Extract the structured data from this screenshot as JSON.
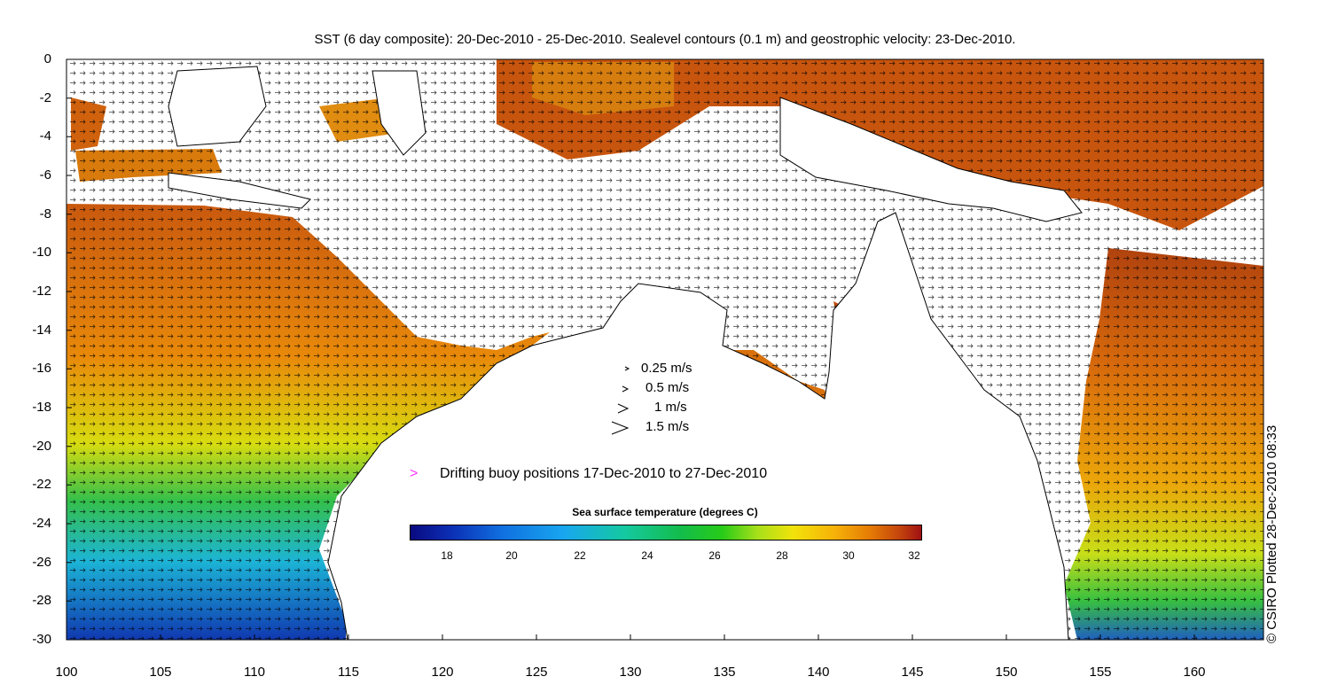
{
  "title": "SST (6 day composite): 20-Dec-2010 - 25-Dec-2010. Sealevel contours (0.1 m) and geostrophic velocity: 23-Dec-2010.",
  "credit": "© CSIRO Plotted 28-Dec-2010 08:33",
  "y_ticks": [
    "0",
    "-2",
    "-4",
    "-6",
    "-8",
    "-10",
    "-12",
    "-14",
    "-16",
    "-18",
    "-20",
    "-22",
    "-24",
    "-26",
    "-28",
    "-30"
  ],
  "x_ticks": [
    "100",
    "105",
    "110",
    "115",
    "120",
    "125",
    "130",
    "135",
    "140",
    "145",
    "150",
    "155",
    "160"
  ],
  "velocity_legend": [
    "0.25 m/s",
    "0.5 m/s",
    "1 m/s",
    "1.5 m/s"
  ],
  "buoy_label": "Drifting buoy positions 17-Dec-2010 to 27-Dec-2010",
  "buoy_marker": ">",
  "colorbar": {
    "title": "Sea surface temperature (degrees C)",
    "ticks": [
      "18",
      "20",
      "22",
      "24",
      "26",
      "28",
      "30",
      "32"
    ]
  },
  "map": {
    "lon_range": [
      100,
      164
    ],
    "lat_range": [
      -30,
      0
    ],
    "colors": {
      "warm": "#d2691e",
      "hot": "#b5400f",
      "orange": "#e88d0c",
      "yellow": "#e6e012",
      "green": "#2ec04a",
      "cyan": "#2cb6d8",
      "blue": "#1c4fc0",
      "land": "#ffffff"
    }
  }
}
